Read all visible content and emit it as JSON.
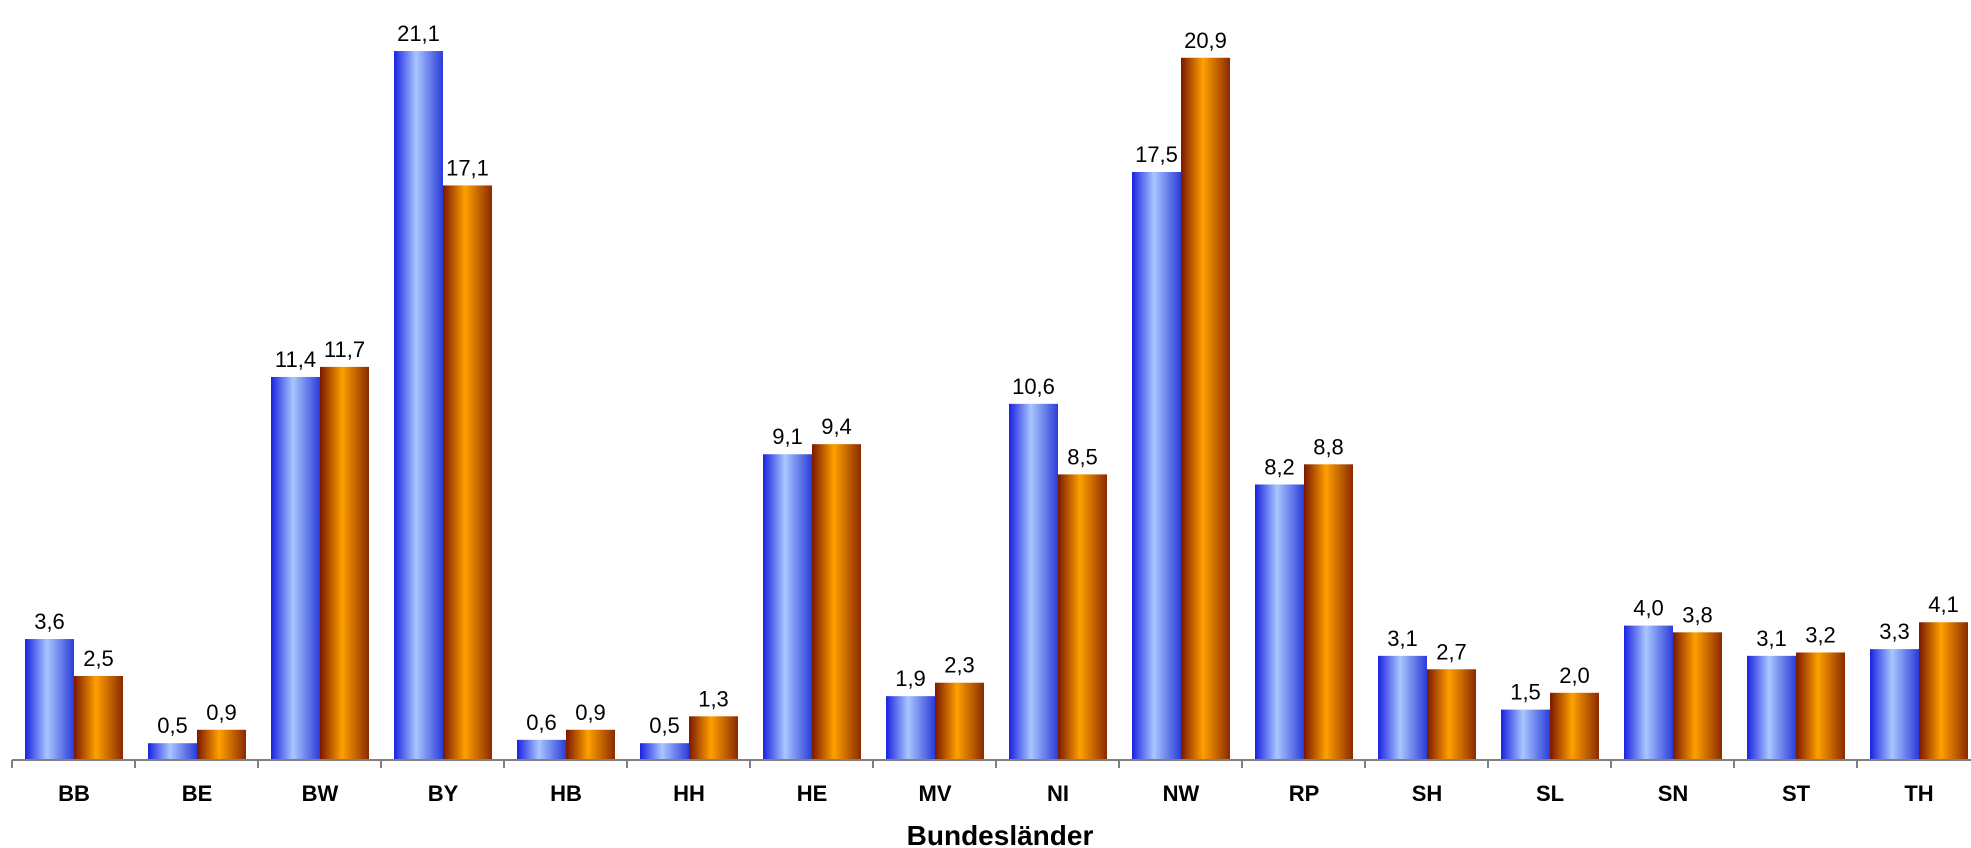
{
  "chart_data": {
    "type": "bar",
    "title": "",
    "xlabel": "Bundesländer",
    "ylabel": "",
    "ylim": [
      0,
      22
    ],
    "grid": false,
    "legend": "none",
    "categories": [
      "BB",
      "BE",
      "BW",
      "BY",
      "HB",
      "HH",
      "HE",
      "MV",
      "NI",
      "NW",
      "RP",
      "SH",
      "SL",
      "SN",
      "ST",
      "TH"
    ],
    "series": [
      {
        "color": "#3355ee",
        "values": [
          3.6,
          0.5,
          11.4,
          21.1,
          0.6,
          0.5,
          9.1,
          1.9,
          10.6,
          17.5,
          8.2,
          3.1,
          1.5,
          4.0,
          3.1,
          3.3
        ],
        "labels": [
          "3,6",
          "0,5",
          "11,4",
          "21,1",
          "0,6",
          "0,5",
          "9,1",
          "1,9",
          "10,6",
          "17,5",
          "8,2",
          "3,1",
          "1,5",
          "4,0",
          "3,1",
          "3,3"
        ]
      },
      {
        "color": "#ff9900",
        "values": [
          2.5,
          0.9,
          11.7,
          17.1,
          0.9,
          1.3,
          9.4,
          2.3,
          8.5,
          20.9,
          8.8,
          2.7,
          2.0,
          3.8,
          3.2,
          4.1
        ],
        "labels": [
          "2,5",
          "0,9",
          "11,7",
          "17,1",
          "0,9",
          "1,3",
          "9,4",
          "2,3",
          "8,5",
          "20,9",
          "8,8",
          "2,7",
          "2,0",
          "3,8",
          "3,2",
          "4,1"
        ]
      }
    ]
  }
}
